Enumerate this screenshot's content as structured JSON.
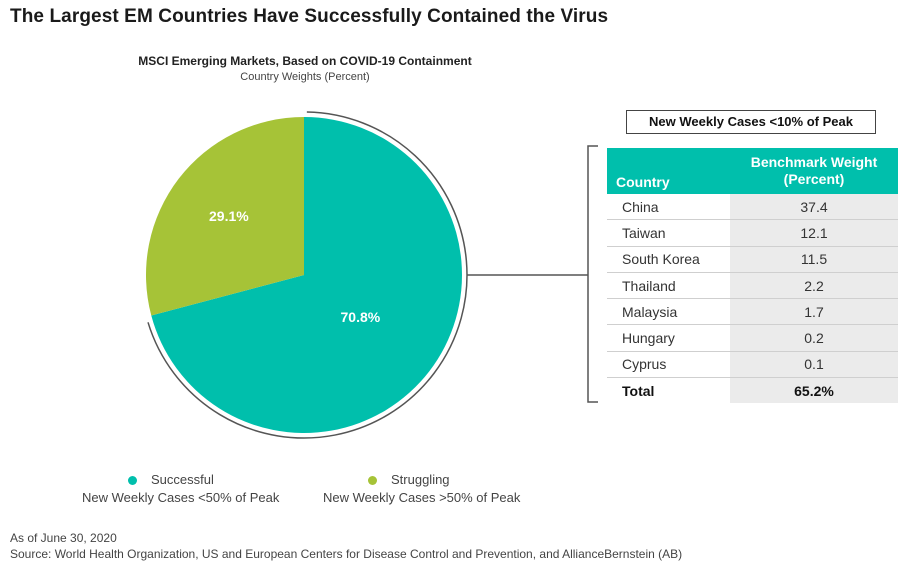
{
  "title": "The Largest EM Countries Have Successfully Contained the Virus",
  "colors": {
    "successful": "#00bfac",
    "struggling": "#a6c337",
    "table_header": "#00bfac"
  },
  "chart_data": {
    "type": "pie",
    "title": "MSCI Emerging Markets, Based on COVID-19 Containment",
    "subtitle": "Country Weights (Percent)",
    "slices": [
      {
        "name": "Successful",
        "value": 70.8,
        "label": "70.8%",
        "color": "#00bfac"
      },
      {
        "name": "Struggling",
        "value": 29.1,
        "label": "29.1%",
        "color": "#a6c337"
      }
    ],
    "legend": [
      {
        "label": "Successful",
        "sublabel": "New Weekly Cases <50% of Peak",
        "color": "#00bfac"
      },
      {
        "label": "Struggling",
        "sublabel": "New Weekly Cases >50% of Peak",
        "color": "#a6c337"
      }
    ],
    "legend_position": "bottom"
  },
  "table": {
    "boxed_title": "New Weekly Cases <10% of Peak",
    "header_country": "Country",
    "header_weight_line1": "Benchmark Weight",
    "header_weight_line2": "(Percent)",
    "rows": [
      {
        "country": "China",
        "weight": "37.4"
      },
      {
        "country": "Taiwan",
        "weight": "12.1"
      },
      {
        "country": "South Korea",
        "weight": "11.5"
      },
      {
        "country": "Thailand",
        "weight": "2.2"
      },
      {
        "country": "Malaysia",
        "weight": "1.7"
      },
      {
        "country": "Hungary",
        "weight": "0.2"
      },
      {
        "country": "Cyprus",
        "weight": "0.1"
      }
    ],
    "total_label": "Total",
    "total_value": "65.2%"
  },
  "footnote_date": "As of June 30, 2020",
  "footnote_source": "Source: World Health Organization, US and European Centers for Disease Control and Prevention, and AllianceBernstein (AB)"
}
